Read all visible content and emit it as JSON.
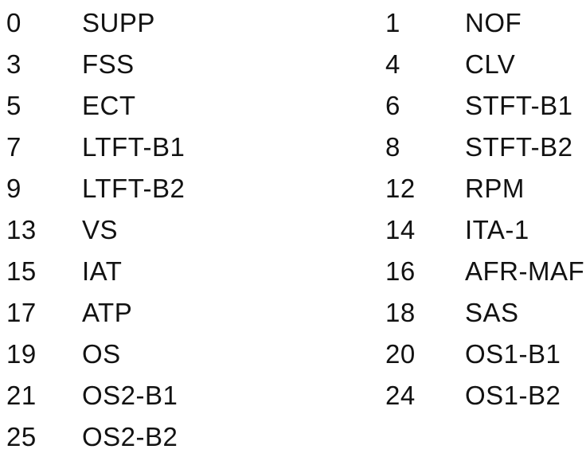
{
  "document": {
    "kind": "scanned-pid-abbreviation-list",
    "background_color": "#ffffff",
    "text_color": "#121212",
    "columns": [
      "pid_number",
      "abbreviation",
      "pid_number",
      "abbreviation"
    ],
    "rows": [
      {
        "left_pid": "0",
        "left_label": "SUPP",
        "right_pid": "1",
        "right_label": "NOF"
      },
      {
        "left_pid": "3",
        "left_label": "FSS",
        "right_pid": "4",
        "right_label": "CLV"
      },
      {
        "left_pid": "5",
        "left_label": "ECT",
        "right_pid": "6",
        "right_label": "STFT-B1"
      },
      {
        "left_pid": "7",
        "left_label": "LTFT-B1",
        "right_pid": "8",
        "right_label": "STFT-B2"
      },
      {
        "left_pid": "9",
        "left_label": "LTFT-B2",
        "right_pid": "12",
        "right_label": "RPM"
      },
      {
        "left_pid": "13",
        "left_label": "VS",
        "right_pid": "14",
        "right_label": "ITA-1"
      },
      {
        "left_pid": "15",
        "left_label": "IAT",
        "right_pid": "16",
        "right_label": "AFR-MAF"
      },
      {
        "left_pid": "17",
        "left_label": "ATP",
        "right_pid": "18",
        "right_label": "SAS"
      },
      {
        "left_pid": "19",
        "left_label": "OS",
        "right_pid": "20",
        "right_label": "OS1-B1"
      },
      {
        "left_pid": "21",
        "left_label": "OS2-B1",
        "right_pid": "24",
        "right_label": "OS1-B2"
      },
      {
        "left_pid": "25",
        "left_label": "OS2-B2",
        "right_pid": "",
        "right_label": ""
      }
    ]
  }
}
